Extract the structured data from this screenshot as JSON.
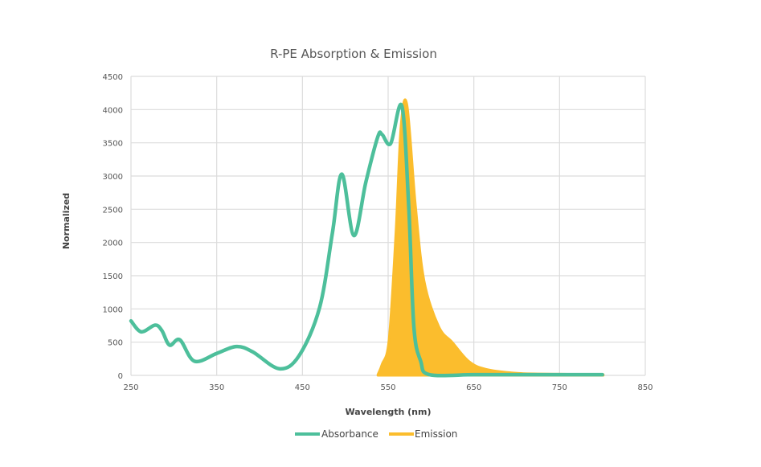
{
  "chart_data": {
    "type": "line",
    "title": "R-PE Absorption & Emission",
    "xlabel": "Wavelength (nm)",
    "ylabel": "Normalized",
    "xlim": [
      250,
      850
    ],
    "ylim": [
      0,
      4500
    ],
    "xticks": [
      250,
      350,
      450,
      550,
      650,
      750,
      850
    ],
    "yticks": [
      0,
      500,
      1000,
      1500,
      2000,
      2500,
      3000,
      3500,
      4000,
      4500
    ],
    "grid": true,
    "legend_position": "bottom",
    "series": [
      {
        "name": "Absorbance",
        "color": "#4dbf9b",
        "style": "line",
        "x": [
          250,
          262,
          278,
          286,
          295,
          307,
          324,
          350,
          373,
          392,
          423,
          446,
          470,
          485,
          496,
          510,
          524,
          538,
          543,
          553,
          566,
          574,
          580,
          588,
          598,
          650,
          700,
          750,
          800
        ],
        "y": [
          820,
          655,
          756,
          675,
          455,
          535,
          213,
          330,
          434,
          354,
          100,
          294,
          1018,
          2144,
          3029,
          2104,
          2908,
          3592,
          3624,
          3491,
          4054,
          2546,
          736,
          213,
          12,
          10,
          10,
          10,
          10
        ]
      },
      {
        "name": "Emission",
        "color": "#fbbd2d",
        "style": "area",
        "x": [
          538,
          543,
          551,
          559,
          565,
          572,
          582,
          592,
          609,
          625,
          644,
          664,
          702,
          750,
          801
        ],
        "y": [
          10,
          170,
          535,
          2144,
          3752,
          4070,
          2546,
          1420,
          736,
          495,
          213,
          93,
          32,
          20,
          12
        ]
      }
    ]
  }
}
